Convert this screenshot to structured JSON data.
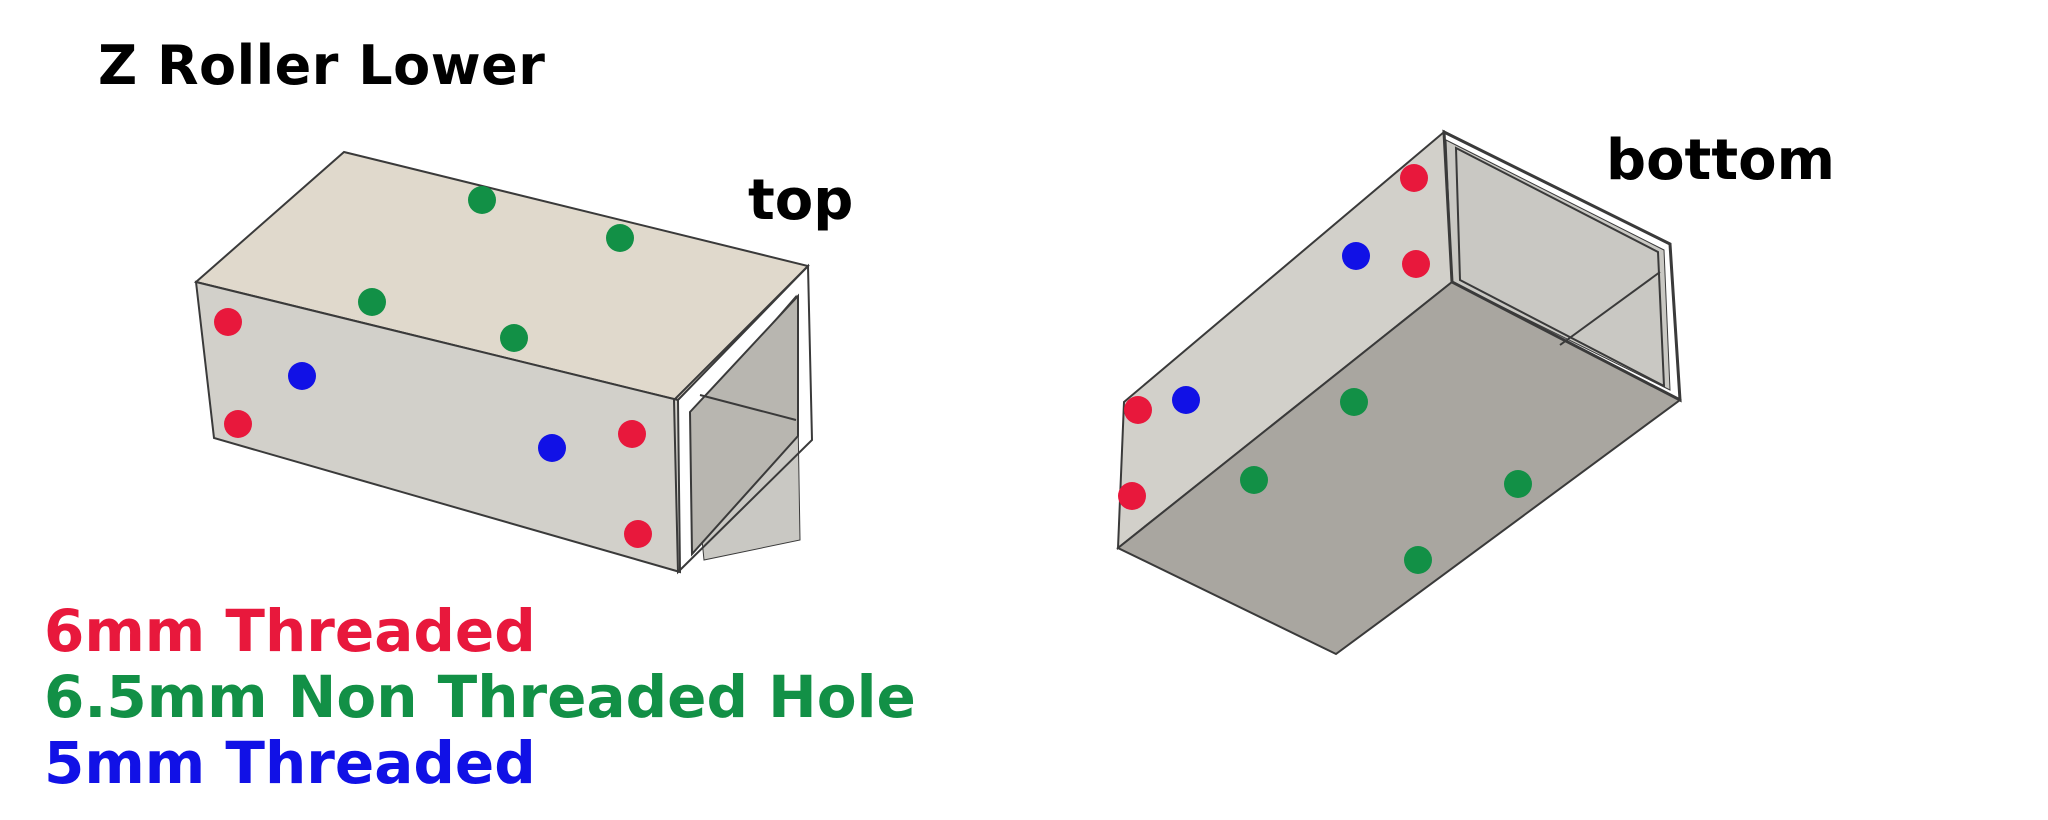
{
  "title": "Z Roller Lower",
  "views": {
    "top_label": "top",
    "bottom_label": "bottom"
  },
  "legend": [
    {
      "label": "6mm Threaded",
      "color": "#e8183c"
    },
    {
      "label": "6.5mm Non Threaded Hole",
      "color": "#129046"
    },
    {
      "label": "5mm Threaded",
      "color": "#1111e6"
    }
  ],
  "colors": {
    "tube_top_face": "#e0d9cc",
    "tube_side_face": "#d2d0ca",
    "tube_inner": "#c9c8c3",
    "tube_bottom_face": "#a9a6a0",
    "tube_end_face": "#b8b6b0",
    "edge": "#3a3a3a"
  }
}
